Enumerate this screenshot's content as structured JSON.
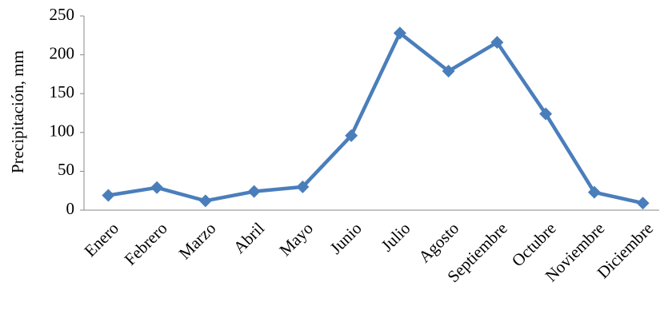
{
  "chart_data": {
    "type": "line",
    "ylabel": "Precipitación, mm",
    "categories": [
      "Enero",
      "Febrero",
      "Marzo",
      "Abril",
      "Mayo",
      "Junio",
      "Julio",
      "Agosto",
      "Septiembre",
      "Octubre",
      "Noviembre",
      "Diciembre"
    ],
    "values": [
      19,
      29,
      12,
      24,
      30,
      96,
      228,
      179,
      216,
      124,
      23,
      9
    ],
    "color": "#4a7ebb",
    "ylim": [
      0,
      250
    ],
    "yticks": [
      0,
      50,
      100,
      150,
      200,
      250
    ],
    "grid": false
  }
}
